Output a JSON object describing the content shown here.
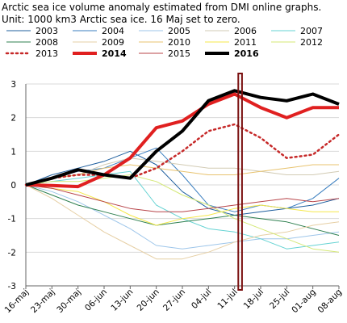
{
  "chart_data": {
    "type": "line",
    "title": "Arctic sea ice volume anomaly estimated from DMI online graphs.",
    "subtitle": "Unit: 1000 km3 Arctic sea ice. 16 Maj set to zero.",
    "xlabel": "",
    "ylabel": "",
    "ylim": [
      -3,
      3
    ],
    "yticks": [
      "-3",
      "-2",
      "-1",
      "0",
      "1",
      "2",
      "3"
    ],
    "x_tick_labels": [
      "16-maj",
      "23-maj",
      "30-maj",
      "06-jun",
      "13-jun",
      "20-jun",
      "27-jun",
      "04-jul",
      "11-jul",
      "18-jul",
      "25-jul",
      "01-aug",
      "08-aug"
    ],
    "x_unit": "days after 16-maj",
    "xlim": [
      0,
      84
    ],
    "grid": "horizontal",
    "legend_position": "top",
    "marker_box": {
      "from_day": 57,
      "to_day": 58
    },
    "series": [
      {
        "name": "2003",
        "color": "#1f5f9e",
        "width": 1,
        "dash": "",
        "x": [
          0,
          7,
          14,
          21,
          28,
          35,
          42,
          49,
          56,
          63,
          70,
          77,
          84
        ],
        "y": [
          0,
          0.3,
          0.5,
          0.7,
          1.0,
          0.6,
          -0.2,
          -0.7,
          -0.9,
          -0.8,
          -0.7,
          -0.6,
          -0.4
        ]
      },
      {
        "name": "2004",
        "color": "#3a7ebf",
        "width": 1,
        "dash": "",
        "x": [
          0,
          7,
          14,
          21,
          28,
          35,
          42,
          49,
          56,
          63,
          70,
          77,
          84
        ],
        "y": [
          0,
          0.2,
          0.4,
          0.5,
          0.8,
          1.1,
          0.3,
          -0.6,
          -0.8,
          -0.6,
          -0.7,
          -0.4,
          0.2
        ]
      },
      {
        "name": "2005",
        "color": "#9ec6ea",
        "width": 1,
        "dash": "",
        "x": [
          0,
          7,
          14,
          21,
          28,
          35,
          42,
          49,
          56,
          63,
          70,
          77,
          84
        ],
        "y": [
          0,
          -0.2,
          -0.5,
          -0.9,
          -1.3,
          -1.8,
          -1.9,
          -1.8,
          -1.7,
          -1.6,
          -1.6,
          -1.5,
          -1.4
        ]
      },
      {
        "name": "2006",
        "color": "#d2cbb4",
        "width": 1,
        "dash": "",
        "x": [
          0,
          7,
          14,
          21,
          28,
          35,
          42,
          49,
          56,
          63,
          70,
          77,
          84
        ],
        "y": [
          0,
          0.2,
          0.3,
          0.6,
          0.8,
          0.7,
          0.6,
          0.5,
          0.5,
          0.4,
          0.3,
          0.3,
          0.4
        ]
      },
      {
        "name": "2007",
        "color": "#66d3d3",
        "width": 1,
        "dash": "",
        "x": [
          0,
          7,
          14,
          21,
          28,
          35,
          42,
          49,
          56,
          63,
          70,
          77,
          84
        ],
        "y": [
          0,
          0.1,
          0.2,
          0.3,
          0.4,
          -0.6,
          -1.0,
          -1.3,
          -1.4,
          -1.6,
          -1.9,
          -1.8,
          -1.7
        ]
      },
      {
        "name": "2008",
        "color": "#2f8050",
        "width": 1,
        "dash": "",
        "x": [
          0,
          7,
          14,
          21,
          28,
          35,
          42,
          49,
          56,
          63,
          70,
          77,
          84
        ],
        "y": [
          0,
          -0.3,
          -0.6,
          -0.8,
          -1.0,
          -1.2,
          -1.1,
          -1.0,
          -0.9,
          -1.0,
          -1.1,
          -1.3,
          -1.5
        ]
      },
      {
        "name": "2009",
        "color": "#e6cfa4",
        "width": 1,
        "dash": "",
        "x": [
          0,
          7,
          14,
          21,
          28,
          35,
          42,
          49,
          56,
          63,
          70,
          77,
          84
        ],
        "y": [
          0,
          -0.4,
          -0.9,
          -1.4,
          -1.8,
          -2.2,
          -2.2,
          -2.0,
          -1.7,
          -1.5,
          -1.4,
          -1.2,
          -1.1
        ]
      },
      {
        "name": "2010",
        "color": "#e8c36f",
        "width": 1,
        "dash": "",
        "x": [
          0,
          7,
          14,
          21,
          28,
          35,
          42,
          49,
          56,
          63,
          70,
          77,
          84
        ],
        "y": [
          0,
          0.2,
          0.3,
          0.5,
          0.6,
          0.5,
          0.4,
          0.3,
          0.3,
          0.4,
          0.5,
          0.6,
          0.6
        ]
      },
      {
        "name": "2011",
        "color": "#f5e84a",
        "width": 1,
        "dash": "",
        "x": [
          0,
          7,
          14,
          21,
          28,
          35,
          42,
          49,
          56,
          63,
          70,
          77,
          84
        ],
        "y": [
          0,
          -0.1,
          -0.2,
          -0.5,
          -0.9,
          -1.2,
          -1.0,
          -0.9,
          -0.7,
          -0.6,
          -0.7,
          -0.8,
          -0.8
        ]
      },
      {
        "name": "2012",
        "color": "#d4e876",
        "width": 1,
        "dash": "",
        "x": [
          0,
          7,
          14,
          21,
          28,
          35,
          42,
          49,
          56,
          63,
          70,
          77,
          84
        ],
        "y": [
          0,
          0.1,
          0.1,
          0.2,
          0.3,
          0.1,
          -0.3,
          -0.6,
          -1.0,
          -1.3,
          -1.6,
          -1.9,
          -2.0
        ]
      },
      {
        "name": "2013",
        "color": "#c62828",
        "width": 2.5,
        "dash": "2,4",
        "x": [
          0,
          7,
          14,
          21,
          28,
          35,
          42,
          49,
          56,
          63,
          70,
          77,
          84
        ],
        "y": [
          0,
          0.2,
          0.3,
          0.3,
          0.2,
          0.5,
          1.0,
          1.6,
          1.8,
          1.4,
          0.8,
          0.9,
          1.5
        ]
      },
      {
        "name": "2014",
        "color": "#e02020",
        "width": 4,
        "dash": "",
        "x": [
          0,
          7,
          14,
          21,
          28,
          35,
          42,
          49,
          56,
          63,
          70,
          77,
          84
        ],
        "y": [
          0,
          -0.02,
          -0.05,
          0.3,
          0.8,
          1.7,
          1.9,
          2.4,
          2.7,
          2.3,
          2.0,
          2.3,
          2.3
        ]
      },
      {
        "name": "2015",
        "color": "#b8454a",
        "width": 1,
        "dash": "",
        "x": [
          0,
          7,
          14,
          21,
          28,
          35,
          42,
          49,
          56,
          63,
          70,
          77,
          84
        ],
        "y": [
          0,
          -0.1,
          -0.3,
          -0.5,
          -0.7,
          -0.8,
          -0.8,
          -0.7,
          -0.6,
          -0.5,
          -0.4,
          -0.5,
          -0.4
        ]
      },
      {
        "name": "2016",
        "color": "#000000",
        "width": 4,
        "dash": "",
        "x": [
          0,
          7,
          14,
          21,
          28,
          35,
          42,
          49,
          56,
          63,
          70,
          77,
          84
        ],
        "y": [
          0,
          0.2,
          0.45,
          0.3,
          0.2,
          1.0,
          1.6,
          2.5,
          2.8,
          2.6,
          2.5,
          2.7,
          2.4
        ]
      }
    ]
  }
}
